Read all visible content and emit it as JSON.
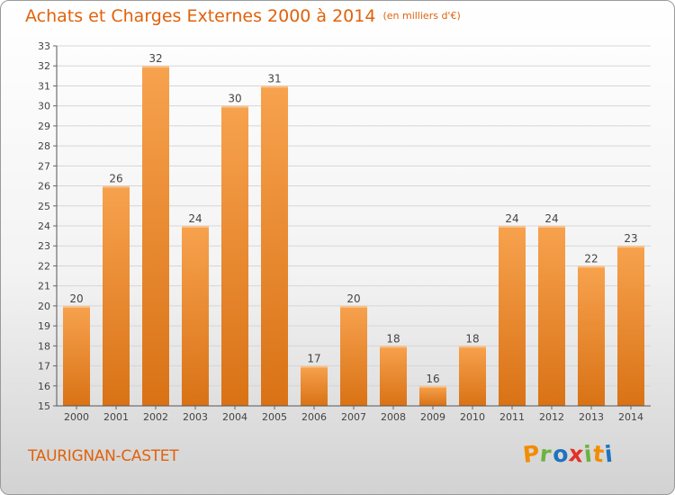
{
  "title": "Achats et Charges Externes 2000 à 2014",
  "unit": "(en milliers d'€)",
  "commune": "TAURIGNAN-CASTET",
  "logo": {
    "letters": [
      "P",
      "r",
      "o",
      "x",
      "i",
      "t",
      "i"
    ],
    "colors": [
      "#f28c00",
      "#6cb33f",
      "#1e73be",
      "#e53027",
      "#6cb33f",
      "#f28c00",
      "#1e73be"
    ]
  },
  "colors": {
    "bar_light": "#f7a24e",
    "bar_dark": "#d97215",
    "title": "#e0620c",
    "grid": "#d6d6d6"
  },
  "chart_data": {
    "type": "bar",
    "categories": [
      "2000",
      "2001",
      "2002",
      "2003",
      "2004",
      "2005",
      "2006",
      "2007",
      "2008",
      "2009",
      "2010",
      "2011",
      "2012",
      "2013",
      "2014"
    ],
    "values": [
      20,
      26,
      32,
      24,
      30,
      31,
      17,
      20,
      18,
      16,
      18,
      24,
      24,
      22,
      23
    ],
    "ylim": [
      15,
      33
    ],
    "yticks": [
      15,
      16,
      17,
      18,
      19,
      20,
      21,
      22,
      23,
      24,
      25,
      26,
      27,
      28,
      29,
      30,
      31,
      32,
      33
    ],
    "grid": true,
    "legend": "none",
    "title": "Achats et Charges Externes 2000 à 2014",
    "xlabel": "",
    "ylabel": ""
  }
}
